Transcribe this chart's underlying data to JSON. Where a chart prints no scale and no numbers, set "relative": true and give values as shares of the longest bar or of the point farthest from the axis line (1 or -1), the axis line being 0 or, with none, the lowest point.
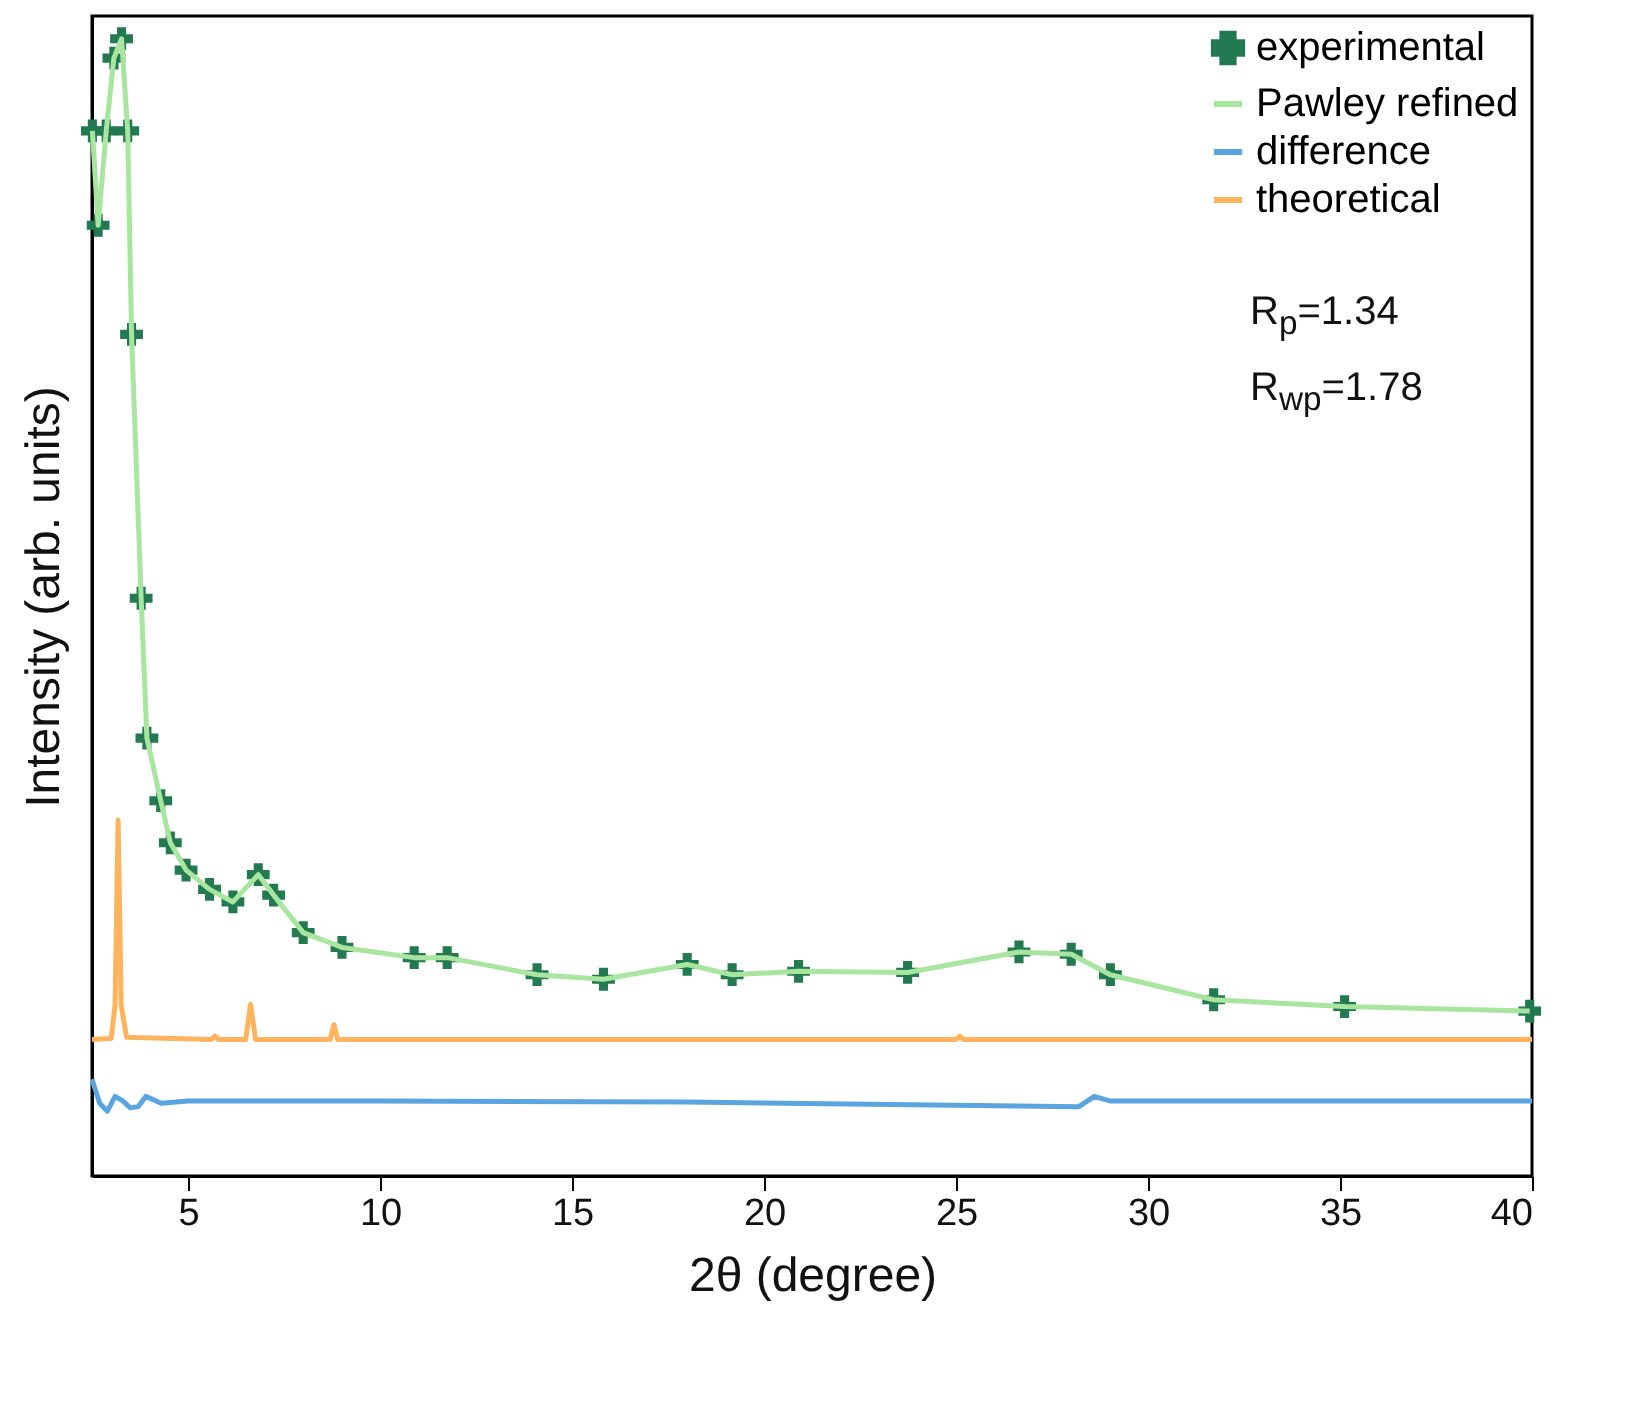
{
  "chart_data": {
    "type": "line",
    "xlabel": "2θ (degree)",
    "ylabel": "Intensity (arb. units)",
    "relative": true,
    "xlim": [
      2.5,
      40
    ],
    "xticks": [
      5,
      10,
      15,
      20,
      25,
      30,
      35,
      40
    ],
    "grid": false,
    "legend": "top right",
    "annotations": [
      "R$_{p}$=1.34",
      "R$_{wp}$=1.78"
    ],
    "series": [
      {
        "name": "experimental",
        "type": "scatter",
        "marker": "cross",
        "color": "#237a50",
        "x": [
          2.51,
          2.66,
          2.87,
          3.07,
          3.27,
          3.43,
          3.53,
          3.78,
          3.93,
          4.29,
          4.54,
          4.95,
          5.56,
          6.17,
          6.83,
          7.23,
          8.0,
          9.01,
          10.89,
          11.75,
          14.09,
          15.82,
          18.0,
          19.17,
          20.9,
          23.74,
          26.64,
          28.0,
          29.02,
          31.71,
          35.12,
          39.94
        ],
        "values": [
          0.919,
          0.836,
          0.919,
          0.983,
          1.0,
          0.919,
          0.74,
          0.508,
          0.385,
          0.33,
          0.293,
          0.269,
          0.252,
          0.241,
          0.265,
          0.247,
          0.214,
          0.201,
          0.192,
          0.192,
          0.177,
          0.173,
          0.186,
          0.177,
          0.18,
          0.179,
          0.197,
          0.195,
          0.177,
          0.155,
          0.149,
          0.145
        ]
      },
      {
        "name": "Pawley refined",
        "color": "#a8e6a0",
        "x": [
          2.51,
          2.66,
          2.87,
          3.07,
          3.27,
          3.43,
          3.53,
          3.78,
          3.93,
          4.29,
          4.54,
          4.95,
          5.56,
          6.17,
          6.83,
          7.23,
          8.0,
          9.01,
          10.89,
          11.75,
          14.09,
          15.82,
          18.0,
          19.17,
          20.9,
          23.74,
          26.64,
          28.0,
          29.02,
          31.71,
          35.12,
          39.94
        ],
        "values": [
          0.919,
          0.836,
          0.919,
          0.983,
          1.0,
          0.919,
          0.74,
          0.508,
          0.385,
          0.33,
          0.293,
          0.269,
          0.252,
          0.241,
          0.265,
          0.247,
          0.214,
          0.201,
          0.192,
          0.192,
          0.177,
          0.173,
          0.186,
          0.177,
          0.18,
          0.179,
          0.197,
          0.195,
          0.177,
          0.155,
          0.149,
          0.145
        ]
      },
      {
        "name": "difference",
        "color": "#5aa5e0",
        "x": [
          2.5,
          2.7,
          2.9,
          3.1,
          3.3,
          3.5,
          3.7,
          3.9,
          4.3,
          5,
          10,
          18,
          28.2,
          28.6,
          29,
          40
        ],
        "values": [
          0.085,
          0.064,
          0.057,
          0.07,
          0.066,
          0.06,
          0.061,
          0.07,
          0.064,
          0.066,
          0.066,
          0.065,
          0.061,
          0.07,
          0.066,
          0.066
        ]
      },
      {
        "name": "theoretical",
        "color": "#ffb35c",
        "x": [
          2.5,
          3.0,
          3.1,
          3.18,
          3.26,
          3.4,
          5.6,
          5.7,
          5.8,
          6.5,
          6.63,
          6.76,
          8.7,
          8.8,
          8.9,
          25.0,
          25.1,
          25.2,
          40
        ],
        "values": [
          0.12,
          0.121,
          0.15,
          0.313,
          0.15,
          0.122,
          0.12,
          0.123,
          0.12,
          0.12,
          0.151,
          0.12,
          0.12,
          0.133,
          0.12,
          0.12,
          0.123,
          0.12,
          0.12
        ]
      }
    ]
  }
}
